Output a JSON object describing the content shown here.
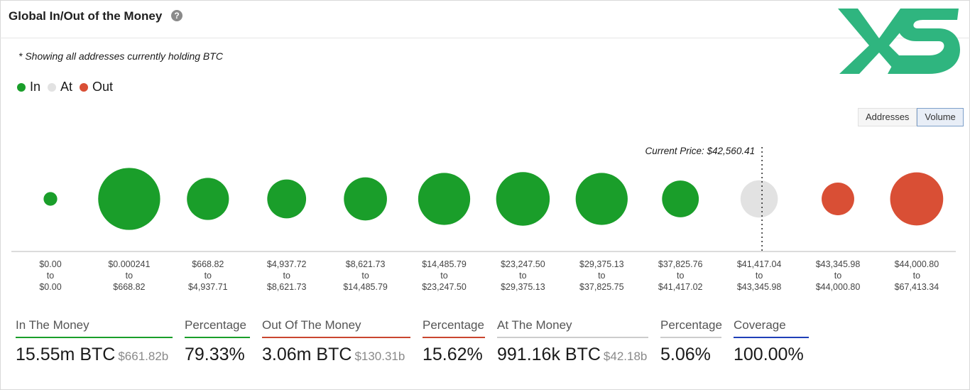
{
  "header": {
    "title": "Global In/Out of the Money",
    "help_glyph": "?"
  },
  "logo": {
    "text": "XS",
    "color": "#2fb57f"
  },
  "note": "* Showing all addresses currently holding BTC",
  "legend": [
    {
      "label": "In",
      "color": "#1a9e2a"
    },
    {
      "label": "At",
      "color": "#e2e2e2"
    },
    {
      "label": "Out",
      "color": "#d94f35"
    }
  ],
  "toggle": {
    "addresses": "Addresses",
    "volume": "Volume"
  },
  "chart_data": {
    "type": "bubble",
    "title": "Global In/Out of the Money",
    "current_price_label": "Current Price: $42,560.41",
    "current_price_after_index": 9,
    "buckets": [
      {
        "from": "$0.00",
        "to_word": "to",
        "to": "$0.00",
        "status": "in",
        "relative_size": 0.26
      },
      {
        "from": "$0.000241",
        "to_word": "to",
        "to": "$668.82",
        "status": "in",
        "relative_size": 1.18
      },
      {
        "from": "$668.82",
        "to_word": "to",
        "to": "$4,937.71",
        "status": "in",
        "relative_size": 0.8
      },
      {
        "from": "$4,937.72",
        "to_word": "to",
        "to": "$8,621.73",
        "status": "in",
        "relative_size": 0.74
      },
      {
        "from": "$8,621.73",
        "to_word": "to",
        "to": "$14,485.79",
        "status": "in",
        "relative_size": 0.82
      },
      {
        "from": "$14,485.79",
        "to_word": "to",
        "to": "$23,247.50",
        "status": "in",
        "relative_size": 0.99
      },
      {
        "from": "$23,247.50",
        "to_word": "to",
        "to": "$29,375.13",
        "status": "in",
        "relative_size": 1.02
      },
      {
        "from": "$29,375.13",
        "to_word": "to",
        "to": "$37,825.75",
        "status": "in",
        "relative_size": 0.99
      },
      {
        "from": "$37,825.76",
        "to_word": "to",
        "to": "$41,417.02",
        "status": "in",
        "relative_size": 0.7
      },
      {
        "from": "$41,417.04",
        "to_word": "to",
        "to": "$43,345.98",
        "status": "at",
        "relative_size": 0.71
      },
      {
        "from": "$43,345.98",
        "to_word": "to",
        "to": "$44,000.80",
        "status": "out",
        "relative_size": 0.62
      },
      {
        "from": "$44,000.80",
        "to_word": "to",
        "to": "$67,413.34",
        "status": "out",
        "relative_size": 1.01
      }
    ],
    "colors": {
      "in": "#1a9e2a",
      "at": "#e2e2e2",
      "out": "#d94f35"
    }
  },
  "stats": {
    "in_label": "In The Money",
    "in_value": "15.55m BTC",
    "in_usd": "$661.82b",
    "in_pct_label": "Percentage",
    "in_pct": "79.33%",
    "out_label": "Out Of The Money",
    "out_value": "3.06m BTC",
    "out_usd": "$130.31b",
    "out_pct_label": "Percentage",
    "out_pct": "15.62%",
    "at_label": "At The Money",
    "at_value": "991.16k BTC",
    "at_usd": "$42.18b",
    "at_pct_label": "Percentage",
    "at_pct": "5.06%",
    "coverage_label": "Coverage",
    "coverage": "100.00%",
    "colors": {
      "in": "#1a9e2a",
      "out": "#c9462f",
      "at": "#cccccc",
      "coverage": "#1f3fb8"
    }
  }
}
